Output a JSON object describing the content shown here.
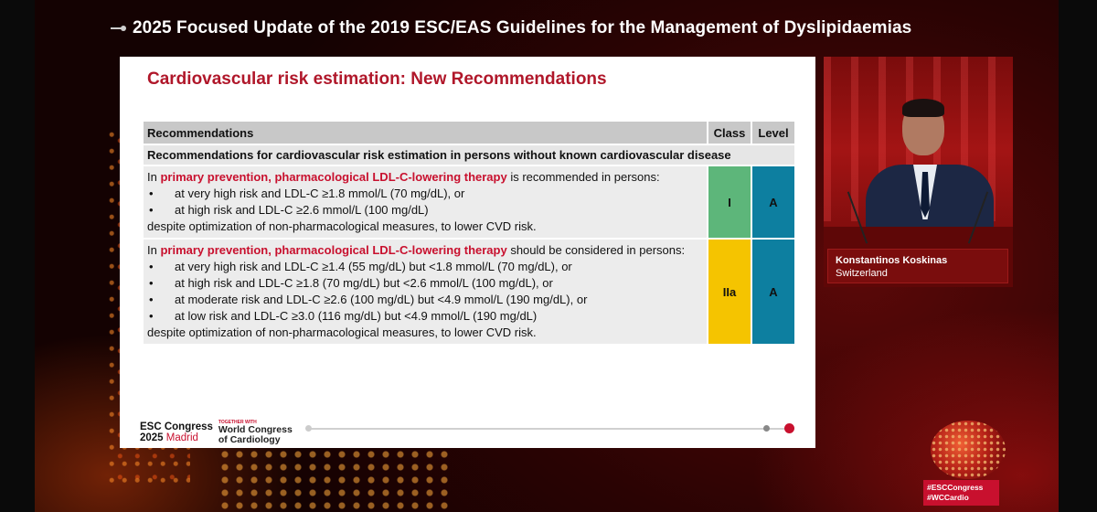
{
  "header": {
    "title": "2025 Focused Update of the 2019 ESC/EAS Guidelines for the Management of Dyslipidaemias"
  },
  "slide": {
    "title": "Cardiovascular risk estimation: New Recommendations",
    "table": {
      "headers": [
        "Recommendations",
        "Class",
        "Level"
      ],
      "subheader": "Recommendations for cardiovascular risk estimation in persons without known cardiovascular disease",
      "rows": [
        {
          "intro_pre": "In ",
          "intro_hl": "primary prevention, pharmacological LDL-C-lowering therapy",
          "intro_post": " is recommended in persons:",
          "bullets": [
            "at very high risk and LDL-C ≥1.8 mmol/L (70 mg/dL), or",
            "at high risk and LDL-C ≥2.6 mmol/L (100 mg/dL)"
          ],
          "outro": "despite optimization of non-pharmacological measures, to lower CVD risk.",
          "class": "I",
          "level": "A",
          "class_color": "#5db67a",
          "level_color": "#0d7fa0"
        },
        {
          "intro_pre": "In ",
          "intro_hl": "primary prevention, pharmacological LDL-C-lowering therapy",
          "intro_post": " should be considered in persons:",
          "bullets": [
            "at very high risk and LDL-C ≥1.4 (55 mg/dL) but <1.8 mmol/L (70 mg/dL), or",
            "at high risk and LDL-C ≥1.8 (70 mg/dL) but <2.6 mmol/L (100 mg/dL), or",
            "at moderate risk and LDL-C ≥2.6 (100 mg/dL) but <4.9 mmol/L (190 mg/dL), or",
            "at low risk and LDL-C ≥3.0 (116 mg/dL) but <4.9 mmol/L (190 mg/dL)"
          ],
          "outro": "despite optimization of non-pharmacological measures, to lower CVD risk.",
          "class": "IIa",
          "level": "A",
          "class_color": "#f5c400",
          "level_color": "#0d7fa0"
        }
      ]
    },
    "footer": {
      "esc_line1": "ESC Congress",
      "esc_year": "2025",
      "esc_city": "Madrid",
      "wc_together": "TOGETHER WITH",
      "wc_line1": "World Congress",
      "wc_line2": "of Cardiology"
    }
  },
  "speaker": {
    "name": "Konstantinos Koskinas",
    "country": "Switzerland"
  },
  "hashtags": [
    "#ESCCongress",
    "#WCCardio"
  ],
  "colors": {
    "accent_red": "#c8102e",
    "class_i": "#5db67a",
    "class_iia": "#f5c400",
    "level_a": "#0d7fa0"
  }
}
